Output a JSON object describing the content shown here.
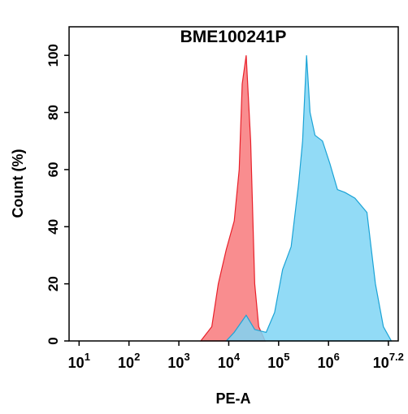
{
  "chart_data": {
    "type": "area",
    "title": "BME100241P",
    "xlabel": "PE-A",
    "ylabel": "Count  (%)",
    "xscale": "log",
    "xlim": [
      6.3,
      25000000
    ],
    "ylim": [
      0,
      110
    ],
    "xticks": [
      {
        "value": 10,
        "label": "10",
        "sup": "1"
      },
      {
        "value": 100,
        "label": "10",
        "sup": "2"
      },
      {
        "value": 1000,
        "label": "10",
        "sup": "3"
      },
      {
        "value": 10000,
        "label": "10",
        "sup": "4"
      },
      {
        "value": 100000,
        "label": "10",
        "sup": "5"
      },
      {
        "value": 1000000,
        "label": "10",
        "sup": "6"
      },
      {
        "value": 15850000,
        "label": "10",
        "sup": "7.2"
      }
    ],
    "yticks": [
      0,
      20,
      40,
      60,
      80,
      100
    ],
    "series": [
      {
        "color": "#f8797b",
        "line": "#e8202a",
        "x": [
          2750,
          4570,
          6170,
          8910,
          12900,
          16200,
          18600,
          22400,
          27500,
          33100,
          39800,
          53700
        ],
        "values": [
          0,
          5,
          20,
          32,
          42,
          60,
          90,
          100,
          70,
          20,
          5,
          0
        ]
      },
      {
        "color": "#7fd5f4",
        "line": "#1aa3d6",
        "x": [
          8910,
          12900,
          22400,
          33100,
          56200,
          83200,
          120000,
          178000,
          251000,
          302000,
          363000,
          427000,
          537000,
          758000,
          1070000,
          1510000,
          2140000,
          3390000,
          5890000,
          8710000,
          12600000,
          18200000
        ],
        "values": [
          0,
          3,
          9,
          4,
          3,
          10,
          25,
          33,
          55,
          70,
          100,
          80,
          72,
          70,
          62,
          53,
          52,
          50,
          45,
          20,
          5,
          0
        ]
      }
    ]
  }
}
